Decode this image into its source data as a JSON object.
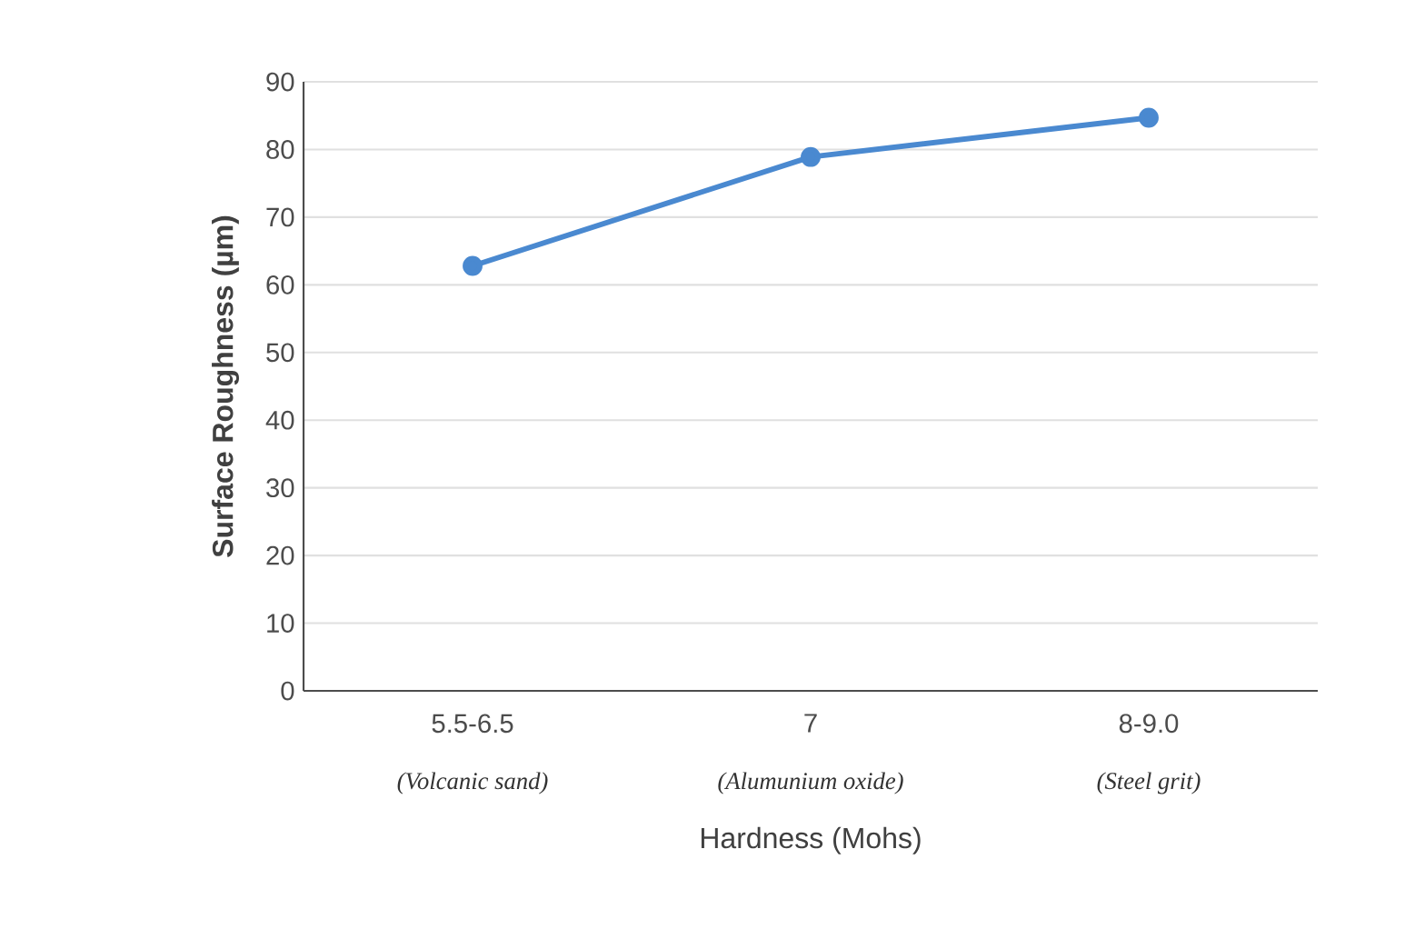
{
  "chart_data": {
    "type": "line",
    "xlabel": "Hardness (Mohs)",
    "ylabel": "Surface Roughness (µm)",
    "categories": [
      "5.5-6.5",
      "7",
      "8-9.0"
    ],
    "series": [
      {
        "color": "#4a89d0",
        "values": [
          62.8,
          78.9,
          84.7
        ]
      }
    ],
    "ylim": [
      0,
      90
    ],
    "yticks": [
      0,
      10,
      20,
      30,
      40,
      50,
      60,
      70,
      80,
      90
    ],
    "grid": "y",
    "marker": "circle",
    "line_style": "solid",
    "annotations": [
      "(Volcanic sand)",
      "(Alumunium oxide)",
      "(Steel grit)"
    ]
  }
}
